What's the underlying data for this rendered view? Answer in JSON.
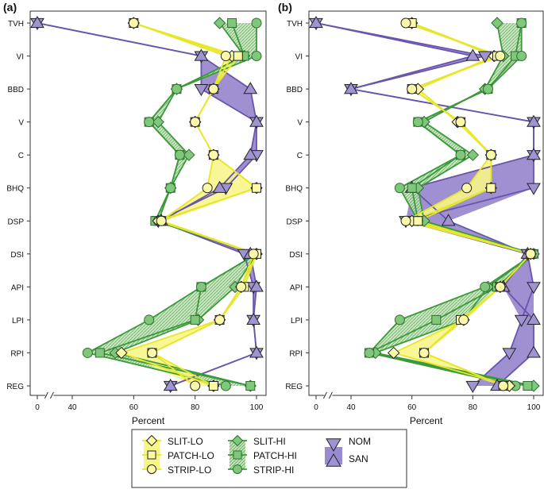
{
  "chart_data": [
    {
      "panel_label": "(a)",
      "type": "line",
      "categories": [
        "TVH",
        "VI",
        "BBD",
        "V",
        "C",
        "BHQ",
        "DSP",
        "DSI",
        "API",
        "LPI",
        "RPI",
        "REG"
      ],
      "xlabel": "Percent",
      "xlim": [
        0,
        100
      ],
      "x_ticks": [
        "0",
        "40",
        "60",
        "80",
        "100"
      ],
      "x_axis_break": "between 0 and 40",
      "grid": false,
      "series": [
        {
          "name": "SLIT-LO",
          "group": "LO",
          "marker": "diamond",
          "values": [
            60,
            92,
            86,
            80,
            86,
            100,
            68,
            100,
            95,
            88,
            56,
            86
          ]
        },
        {
          "name": "PATCH-LO",
          "group": "LO",
          "marker": "square",
          "values": [
            60,
            94,
            86,
            80,
            86,
            100,
            69,
            100,
            96,
            88,
            66,
            86
          ]
        },
        {
          "name": "STRIP-LO",
          "group": "LO",
          "marker": "circle",
          "values": [
            60,
            90,
            86,
            80,
            86,
            84,
            69,
            99,
            95,
            88,
            66,
            80
          ]
        },
        {
          "name": "SLIT-HI",
          "group": "HI",
          "marker": "diamond",
          "values": [
            88,
            96,
            74,
            68,
            78,
            72,
            68,
            100,
            93,
            81,
            54,
            98
          ]
        },
        {
          "name": "PATCH-HI",
          "group": "HI",
          "marker": "square",
          "values": [
            92,
            96,
            74,
            65,
            75,
            72,
            67,
            100,
            82,
            80,
            49,
            98
          ]
        },
        {
          "name": "STRIP-HI",
          "group": "HI",
          "marker": "circle",
          "values": [
            100,
            100,
            74,
            65,
            75,
            72,
            68,
            100,
            82,
            65,
            45,
            90
          ]
        },
        {
          "name": "NOM",
          "group": "NOMSAN",
          "marker": "triangle-down",
          "values": [
            0,
            82,
            82,
            100,
            100,
            90,
            68,
            96,
            99,
            99,
            100,
            72
          ]
        },
        {
          "name": "SAN",
          "group": "NOMSAN",
          "marker": "triangle-up",
          "values": [
            0,
            82,
            98,
            100,
            98,
            88,
            69,
            98,
            100,
            99,
            100,
            72
          ]
        }
      ]
    },
    {
      "panel_label": "(b)",
      "type": "line",
      "categories": [
        "TVH",
        "VI",
        "BBD",
        "V",
        "C",
        "BHQ",
        "DSP",
        "DSI",
        "API",
        "LPI",
        "RPI",
        "REG"
      ],
      "xlabel": "Percent",
      "xlim": [
        0,
        100
      ],
      "x_ticks": [
        "0",
        "40",
        "60",
        "80",
        "100"
      ],
      "x_axis_break": "between 0 and 40",
      "grid": false,
      "series": [
        {
          "name": "SLIT-LO",
          "group": "LO",
          "marker": "diamond",
          "values": [
            60,
            87,
            62,
            75,
            86,
            86,
            60,
            99,
            89,
            77,
            54,
            92
          ]
        },
        {
          "name": "PATCH-LO",
          "group": "LO",
          "marker": "square",
          "values": [
            60,
            88,
            60,
            76,
            86,
            86,
            62,
            99,
            89,
            76,
            64,
            90
          ]
        },
        {
          "name": "STRIP-LO",
          "group": "LO",
          "marker": "circle",
          "values": [
            58,
            89,
            60,
            76,
            86,
            78,
            58,
            99,
            89,
            77,
            64,
            90
          ]
        },
        {
          "name": "SLIT-HI",
          "group": "HI",
          "marker": "diamond",
          "values": [
            88,
            90,
            84,
            64,
            80,
            62,
            64,
            100,
            85,
            77,
            48,
            100
          ]
        },
        {
          "name": "PATCH-HI",
          "group": "HI",
          "marker": "square",
          "values": [
            96,
            94,
            85,
            62,
            76,
            60,
            62,
            100,
            88,
            68,
            46,
            98
          ]
        },
        {
          "name": "STRIP-HI",
          "group": "HI",
          "marker": "circle",
          "values": [
            96,
            96,
            85,
            62,
            76,
            56,
            62,
            100,
            84,
            56,
            46,
            94
          ]
        },
        {
          "name": "NOM",
          "group": "NOMSAN",
          "marker": "triangle-down",
          "values": [
            0,
            84,
            40,
            100,
            100,
            100,
            58,
            98,
            100,
            96,
            92,
            80
          ]
        },
        {
          "name": "SAN",
          "group": "NOMSAN",
          "marker": "triangle-up",
          "values": [
            0,
            80,
            40,
            100,
            100,
            60,
            72,
            98,
            90,
            100,
            100,
            88
          ]
        }
      ]
    }
  ],
  "legend": {
    "placement": "bottom-center",
    "items": [
      {
        "label": "SLIT-LO",
        "series": "SLIT-LO"
      },
      {
        "label": "PATCH-LO",
        "series": "PATCH-LO"
      },
      {
        "label": "STRIP-LO",
        "series": "STRIP-LO"
      },
      {
        "label": "SLIT-HI",
        "series": "SLIT-HI"
      },
      {
        "label": "PATCH-HI",
        "series": "PATCH-HI"
      },
      {
        "label": "STRIP-HI",
        "series": "STRIP-HI"
      },
      {
        "label": "NOM",
        "series": "NOM"
      },
      {
        "label": "SAN",
        "series": "SAN"
      }
    ]
  },
  "colors": {
    "LO_line": "#e6e62a",
    "LO_fill": "#f7f58a",
    "LO_marker": "#fbf9a8",
    "HI_line": "#3a9a3a",
    "HI_fill": "#b9e0b0",
    "HI_marker": "#7fc77a",
    "NOMSAN_line": "#6a55ad",
    "NOMSAN_fill": "#9a8ad0",
    "NOMSAN_marker": "#9f93d2"
  }
}
